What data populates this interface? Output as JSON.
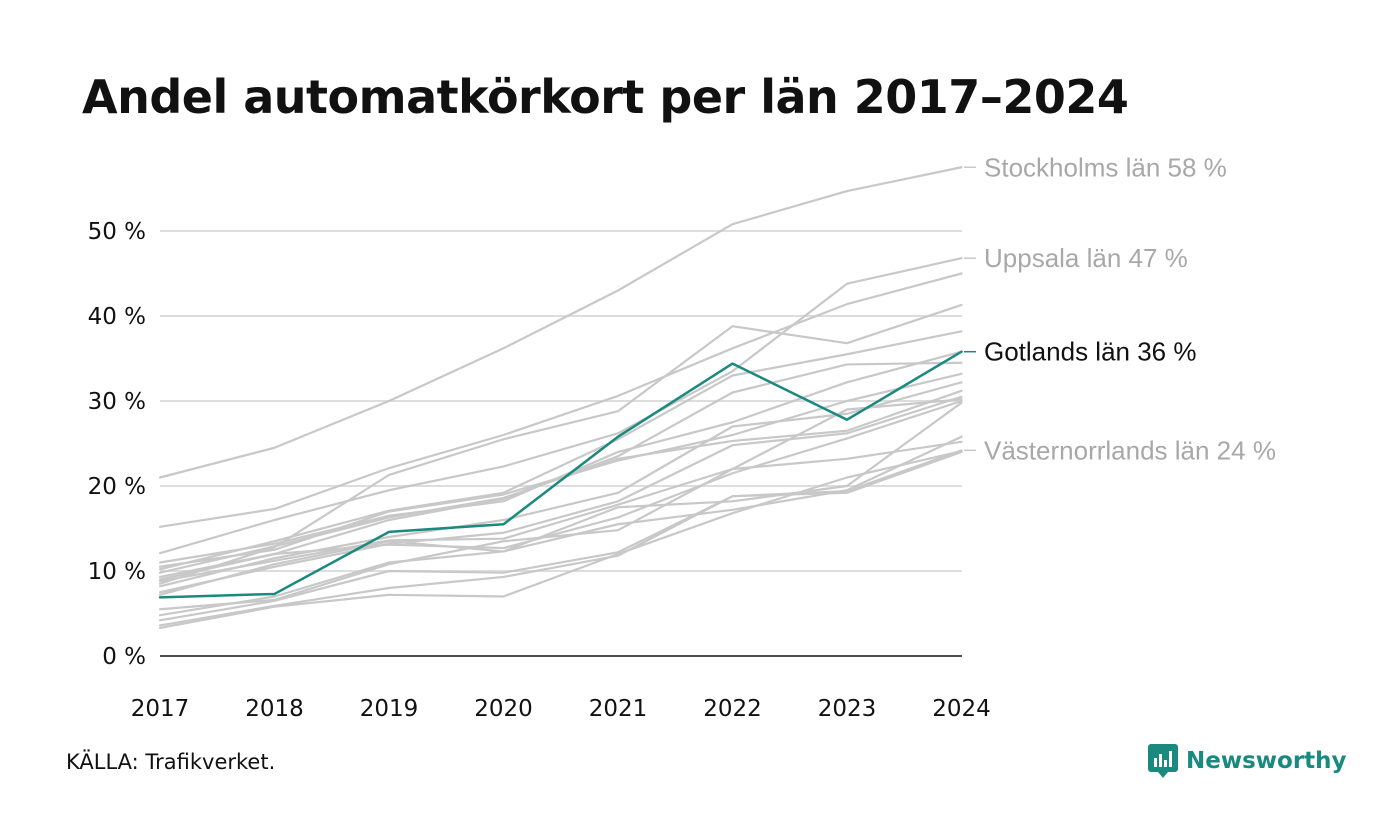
{
  "chart_data": {
    "type": "line",
    "title": "Andel automatkörkort per län 2017–2024",
    "x": [
      "2017",
      "2018",
      "2019",
      "2020",
      "2021",
      "2022",
      "2023",
      "2024"
    ],
    "y_ticks": [
      "0 %",
      "10 %",
      "20 %",
      "30 %",
      "40 %",
      "50 %"
    ],
    "ylim": [
      0,
      58
    ],
    "grid": true,
    "series": [
      {
        "name": "Stockholms län 58 %",
        "values": [
          21,
          24.5,
          30,
          36.2,
          43,
          50.8,
          54.7,
          57.5
        ],
        "highlight": false,
        "labeled": true
      },
      {
        "name": "Uppsala län 47 %",
        "values": [
          12.1,
          16,
          19.5,
          22.3,
          26.2,
          33.5,
          43.8,
          46.8
        ],
        "highlight": false,
        "labeled": true
      },
      {
        "name": "Gotlands län 36 %",
        "values": [
          6.9,
          7.3,
          14.6,
          15.5,
          25.8,
          34.4,
          27.8,
          35.8
        ],
        "highlight": true,
        "labeled": true
      },
      {
        "name": "Västernorrlands län 24 %",
        "values": [
          3.6,
          5.9,
          8,
          9.3,
          11.8,
          18.8,
          19.4,
          24.2
        ],
        "highlight": false,
        "labeled": true
      },
      {
        "values": [
          15.2,
          17.3,
          22.1,
          26,
          30.6,
          36.2,
          41.4,
          45
        ]
      },
      {
        "values": [
          8.5,
          12.8,
          21.3,
          25.5,
          28.8,
          38.8,
          36.8,
          41.3
        ]
      },
      {
        "values": [
          10.2,
          13.5,
          17.1,
          19.2,
          25.5,
          33,
          35.5,
          38.2
        ]
      },
      {
        "values": [
          11,
          13.2,
          16.5,
          18.2,
          24,
          27.5,
          32.2,
          35.8
        ]
      },
      {
        "values": [
          9,
          12,
          16,
          18.5,
          23.5,
          31,
          34.3,
          34.5
        ]
      },
      {
        "values": [
          10.5,
          12.5,
          17,
          19,
          23,
          26,
          30,
          33.2
        ]
      },
      {
        "values": [
          8.2,
          11.5,
          14,
          16,
          19.2,
          27,
          28.5,
          32.2
        ]
      },
      {
        "values": [
          9.8,
          12.9,
          16.3,
          18.6,
          23.2,
          25.3,
          26.5,
          31.2
        ]
      },
      {
        "values": [
          7.5,
          10.5,
          13.2,
          14.5,
          18.2,
          24.8,
          26.2,
          30.5
        ]
      },
      {
        "values": [
          8.8,
          11.2,
          13.6,
          13.8,
          17.8,
          22,
          29,
          30.2
        ]
      },
      {
        "values": [
          9.3,
          12,
          13.1,
          12.7,
          16.3,
          21.5,
          25.6,
          30
        ]
      },
      {
        "values": [
          7.2,
          10.8,
          13.5,
          12.3,
          17.5,
          18.2,
          20,
          29.8
        ]
      },
      {
        "values": [
          5.5,
          6.6,
          10.8,
          13.5,
          14.8,
          22,
          23.2,
          25.2
        ]
      },
      {
        "values": [
          4.8,
          7,
          11,
          12.3,
          15.5,
          17.2,
          19.5,
          25.8
        ]
      },
      {
        "values": [
          3.3,
          5.8,
          7.2,
          7,
          12,
          16.8,
          21,
          24.1
        ]
      },
      {
        "values": [
          4.2,
          6.5,
          10,
          9.8,
          12.2,
          18.8,
          19.2,
          24
        ]
      }
    ]
  },
  "footer": {
    "source": "KÄLLA: Trafikverket.",
    "brand": "Newsworthy"
  },
  "colors": {
    "highlight": "#1a8a7e",
    "muted_line": "#c8c8c8",
    "muted_label": "#a8a8a8",
    "grid": "#dddddd",
    "axis": "#111111",
    "brand": "#1a8a7e"
  }
}
